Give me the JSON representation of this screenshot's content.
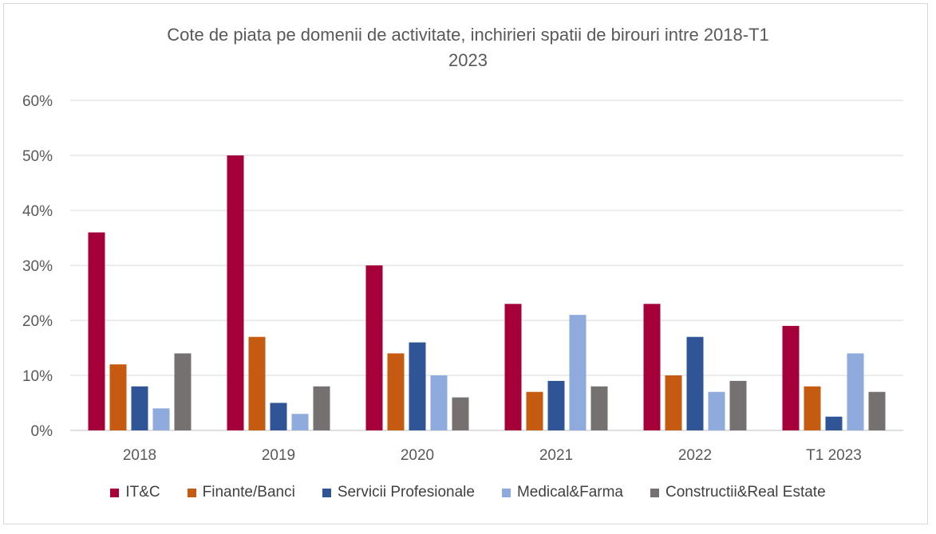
{
  "chart_data": {
    "type": "bar",
    "title_lines": [
      "Cote de piata pe domenii de activitate, inchirieri spatii de birouri intre 2018-T1",
      "2023"
    ],
    "categories": [
      "2018",
      "2019",
      "2020",
      "2021",
      "2022",
      "T1 2023"
    ],
    "series": [
      {
        "name": "IT&C",
        "color": "#a50039",
        "values": [
          36,
          50,
          30,
          23,
          23,
          19
        ]
      },
      {
        "name": "Finante/Banci",
        "color": "#c55a11",
        "values": [
          12,
          17,
          14,
          7,
          10,
          8
        ]
      },
      {
        "name": "Servicii Profesionale",
        "color": "#2f5597",
        "values": [
          8,
          5,
          16,
          9,
          17,
          2.5
        ]
      },
      {
        "name": "Medical&Farma",
        "color": "#8faadc",
        "values": [
          4,
          3,
          10,
          21,
          7,
          14
        ]
      },
      {
        "name": "Constructii&Real Estate",
        "color": "#767171",
        "values": [
          14,
          8,
          6,
          8,
          9,
          7
        ]
      }
    ],
    "ylim": [
      0,
      60
    ],
    "yticks": [
      "0%",
      "10%",
      "20%",
      "30%",
      "40%",
      "50%",
      "60%"
    ],
    "grid": true,
    "legend_position": "bottom"
  }
}
